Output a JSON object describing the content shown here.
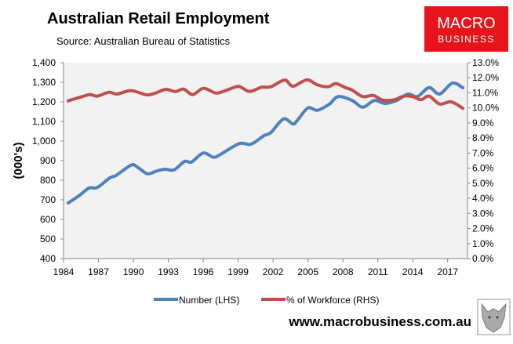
{
  "chart_data": {
    "type": "line",
    "title": "Australian Retail Employment",
    "subtitle": "Source: Australian Bureau of Statistics",
    "ylabel": "(000's)",
    "xlabel": "",
    "xlim": [
      1984,
      2018.7
    ],
    "ylim": [
      400,
      1400
    ],
    "y2lim": [
      0,
      13
    ],
    "x_ticks": [
      "1984",
      "1987",
      "1990",
      "1993",
      "1996",
      "1999",
      "2002",
      "2005",
      "2008",
      "2011",
      "2014",
      "2017"
    ],
    "y_ticks": [
      "400",
      "500",
      "600",
      "700",
      "800",
      "900",
      "1,000",
      "1,100",
      "1,200",
      "1,300",
      "1,400"
    ],
    "y2_ticks": [
      "0.0%",
      "1.0%",
      "2.0%",
      "3.0%",
      "4.0%",
      "5.0%",
      "6.0%",
      "7.0%",
      "8.0%",
      "9.0%",
      "10.0%",
      "11.0%",
      "12.0%",
      "13.0%"
    ],
    "grid": false,
    "legend_placement": "bottom",
    "series": [
      {
        "name": "Number (LHS)",
        "axis": "left",
        "color": "#4f81bd",
        "x": [
          1984.4,
          1985.3,
          1986.2,
          1986.9,
          1988.0,
          1988.5,
          1989.8,
          1990.3,
          1991.2,
          1992.0,
          1992.7,
          1993.5,
          1994.4,
          1995.0,
          1996.0,
          1996.9,
          1997.6,
          1999.1,
          2000.1,
          2001.2,
          2001.8,
          2002.9,
          2003.7,
          2004.1,
          2005.0,
          2005.8,
          2006.8,
          2007.6,
          2008.8,
          2009.7,
          2010.7,
          2011.6,
          2012.6,
          2013.6,
          2014.4,
          2015.4,
          2016.3,
          2017.4,
          2018.3
        ],
        "values": [
          684,
          720,
          760,
          763,
          813,
          824,
          877,
          869,
          833,
          847,
          856,
          853,
          896,
          893,
          939,
          917,
          936,
          987,
          984,
          1027,
          1043,
          1113,
          1087,
          1107,
          1169,
          1157,
          1187,
          1227,
          1207,
          1173,
          1207,
          1192,
          1207,
          1240,
          1227,
          1273,
          1240,
          1296,
          1272
        ]
      },
      {
        "name": "% of Workforce (RHS)",
        "axis": "right",
        "color": "#c0504d",
        "x": [
          1984.4,
          1985.6,
          1986.3,
          1986.9,
          1987.9,
          1988.6,
          1989.8,
          1991.1,
          1991.8,
          1992.8,
          1993.6,
          1994.3,
          1995.1,
          1996.0,
          1997.0,
          1997.6,
          1998.8,
          1999.2,
          2000.0,
          2001.0,
          2001.8,
          2003.0,
          2003.7,
          2004.9,
          2005.8,
          2006.7,
          2007.4,
          2008.2,
          2008.8,
          2009.7,
          2010.6,
          2011.4,
          2012.4,
          2013.2,
          2014.0,
          2014.7,
          2015.4,
          2016.3,
          2017.3,
          2018.3
        ],
        "values": [
          10.47,
          10.75,
          10.88,
          10.78,
          11.04,
          10.92,
          11.15,
          10.87,
          10.96,
          11.23,
          11.08,
          11.25,
          10.88,
          11.3,
          11.0,
          11.06,
          11.4,
          11.39,
          11.09,
          11.37,
          11.4,
          11.85,
          11.44,
          11.86,
          11.53,
          11.4,
          11.61,
          11.35,
          11.18,
          10.75,
          10.83,
          10.52,
          10.54,
          10.78,
          10.75,
          10.54,
          10.78,
          10.26,
          10.4,
          9.97
        ]
      }
    ]
  },
  "logo": {
    "line1": "MACRO",
    "line2": "BUSINESS",
    "color": "#e8141c"
  },
  "footer": {
    "url": "www.macrobusiness.com.au"
  },
  "colors": {
    "plot_bg": "#f2f2f2",
    "axis": "#868686"
  }
}
